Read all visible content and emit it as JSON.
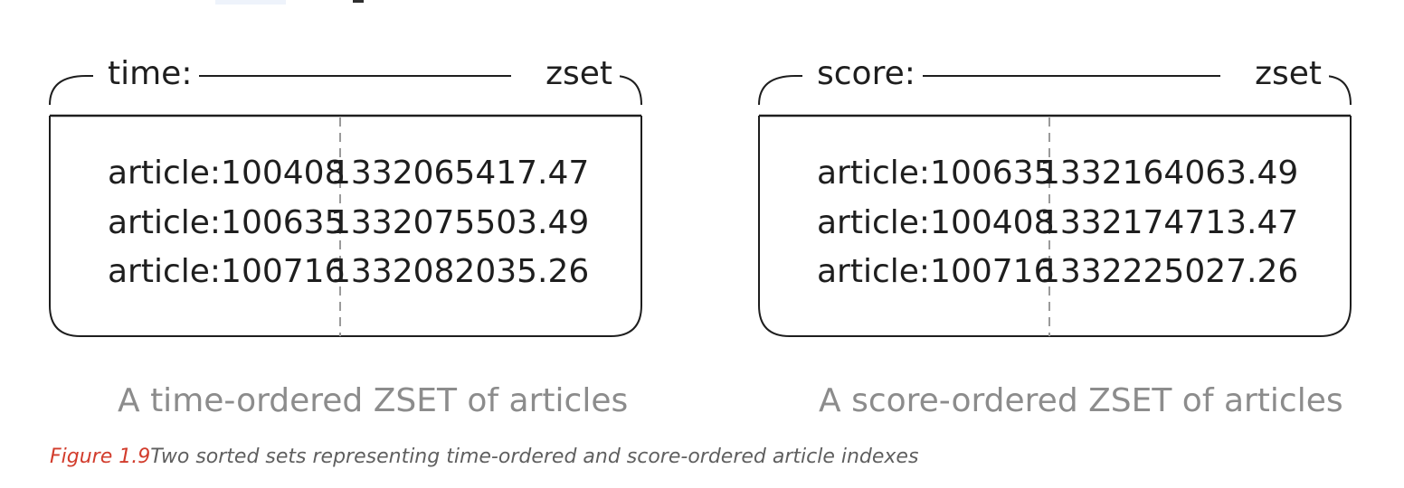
{
  "zsets": [
    {
      "key_name": "time:",
      "key_type": "zset",
      "entries": [
        {
          "member": "article:100408",
          "score": "1332065417.47"
        },
        {
          "member": "article:100635",
          "score": "1332075503.49"
        },
        {
          "member": "article:100716",
          "score": "1332082035.26"
        }
      ],
      "caption": "A time-ordered ZSET of articles"
    },
    {
      "key_name": "score:",
      "key_type": "zset",
      "entries": [
        {
          "member": "article:100635",
          "score": "1332164063.49"
        },
        {
          "member": "article:100408",
          "score": "1332174713.47"
        },
        {
          "member": "article:100716",
          "score": "1332225027.26"
        }
      ],
      "caption": "A score-ordered ZSET of articles"
    }
  ],
  "figure": {
    "label": "Figure 1.9",
    "text": "Two sorted sets representing time-ordered and score-ordered article indexes"
  },
  "colors": {
    "ink": "#1e1e1e",
    "caption_gray": "#8c8c8c",
    "figure_label_red": "#d23c2c",
    "divider_dash": "#9a9a9a"
  }
}
